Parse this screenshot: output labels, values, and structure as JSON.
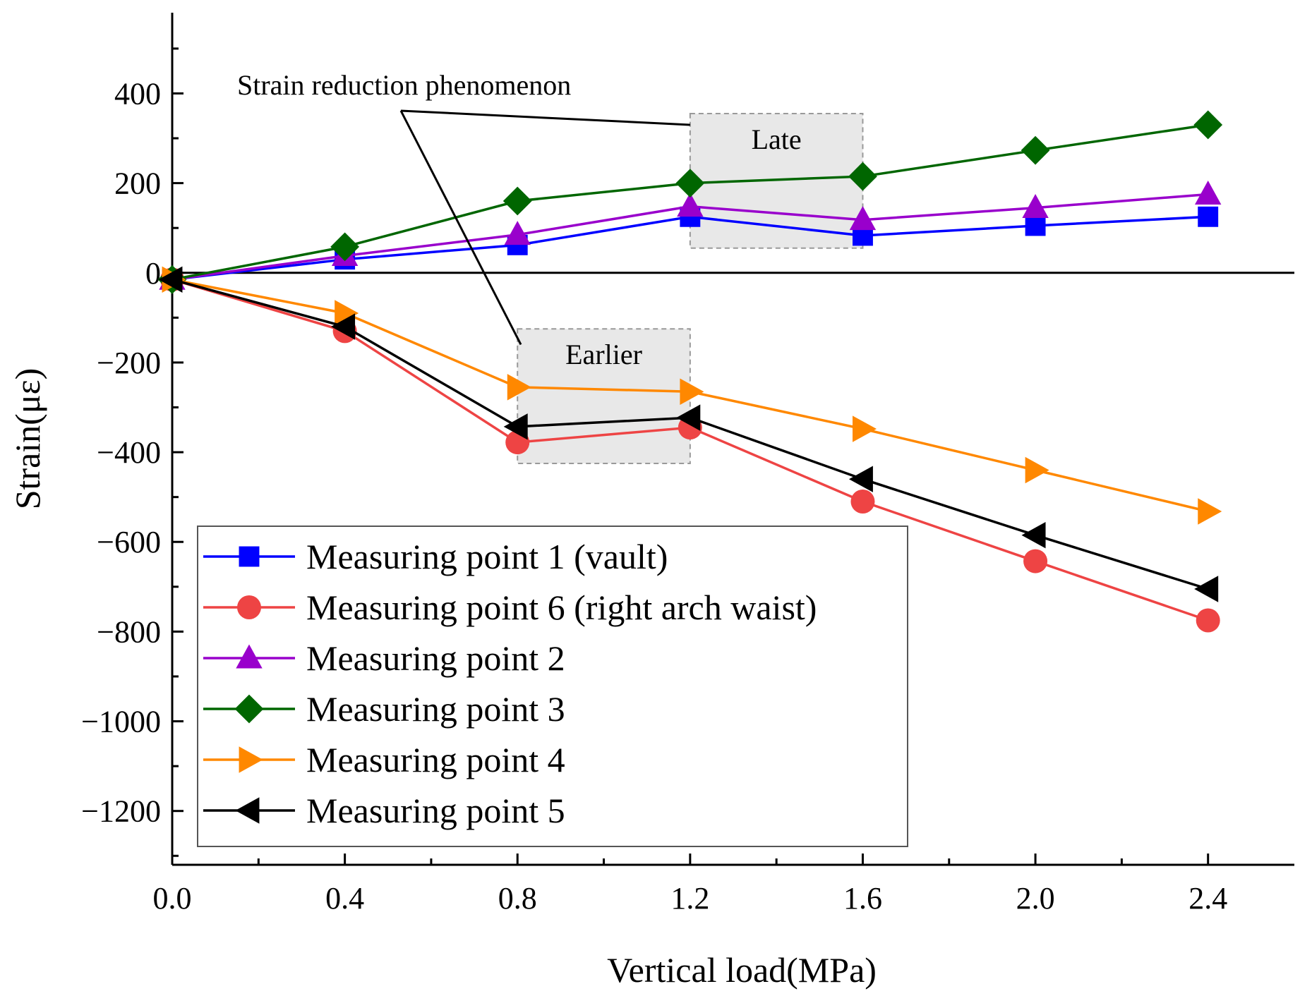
{
  "chart_data": {
    "type": "line",
    "title": "",
    "xlabel": "Vertical load(MPa)",
    "ylabel": "Strain(με)",
    "xlim": [
      0,
      2.6
    ],
    "ylim": [
      -1320,
      580
    ],
    "x_ticks": [
      0.0,
      0.4,
      0.8,
      1.2,
      1.6,
      2.0,
      2.4
    ],
    "x_tick_labels": [
      "0.0",
      "0.4",
      "0.8",
      "1.2",
      "1.6",
      "2.0",
      "2.4"
    ],
    "y_ticks": [
      400,
      200,
      0,
      -200,
      -400,
      -600,
      -800,
      -1000,
      -1200
    ],
    "y_tick_labels": [
      "400",
      "200",
      "0",
      "−200",
      "−400",
      "−600",
      "−800",
      "−1000",
      "−1200"
    ],
    "x": [
      0.0,
      0.4,
      0.8,
      1.2,
      1.6,
      2.0,
      2.4
    ],
    "series": [
      {
        "name": "Measuring point 1 (vault)",
        "color": "#0000ff",
        "marker": "square",
        "values": [
          -15,
          30,
          62,
          125,
          83,
          105,
          125
        ]
      },
      {
        "name": "Measuring point 6 (right arch waist)",
        "color": "#ee4444",
        "marker": "circle",
        "values": [
          -15,
          -130,
          -378,
          -345,
          -510,
          -643,
          -775
        ]
      },
      {
        "name": "Measuring point 2",
        "color": "#9900cc",
        "marker": "triangle-up",
        "values": [
          -15,
          38,
          85,
          148,
          118,
          145,
          175
        ]
      },
      {
        "name": "Measuring point 3",
        "color": "#006600",
        "marker": "diamond",
        "values": [
          -15,
          58,
          160,
          200,
          215,
          273,
          330
        ]
      },
      {
        "name": "Measuring point 4",
        "color": "#ff8800",
        "marker": "triangle-right",
        "values": [
          -15,
          -90,
          -255,
          -265,
          -348,
          -440,
          -532
        ]
      },
      {
        "name": "Measuring point 5",
        "color": "#000000",
        "marker": "triangle-left",
        "values": [
          -15,
          -120,
          -343,
          -323,
          -460,
          -585,
          -705
        ]
      }
    ],
    "reference_line_y": 0,
    "legend_position": "bottom-left",
    "annotations": {
      "main_label": "Strain reduction phenomenon",
      "boxes": [
        {
          "label": "Late",
          "x_range": [
            1.2,
            1.6
          ],
          "y_range": [
            55,
            355
          ]
        },
        {
          "label": "Earlier",
          "x_range": [
            0.8,
            1.2
          ],
          "y_range": [
            -425,
            -125
          ]
        }
      ]
    }
  }
}
